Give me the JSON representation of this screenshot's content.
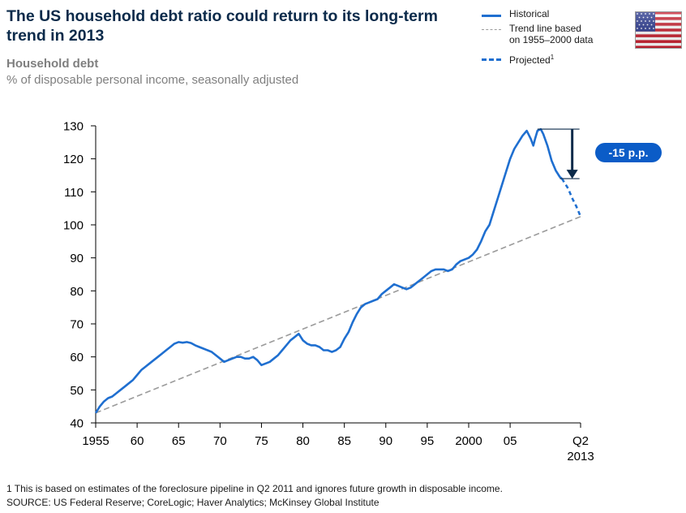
{
  "header": {
    "title": "The US household debt ratio could return to its long-term trend in 2013",
    "subtitle": "Household debt",
    "unit_note": "% of disposable personal income, seasonally adjusted"
  },
  "legend": {
    "historical": "Historical",
    "trend_line1": "Trend line based",
    "trend_line2": "on 1955–2000 data",
    "projected": "Projected",
    "projected_sup": "1"
  },
  "flag_icon": "us-flag-icon",
  "colors": {
    "historical": "#1f6fd0",
    "trend": "#9b9b9b",
    "annotation_arrow": "#0b2a4a",
    "badge_fill": "#0b5cc7",
    "title": "#0b2a4a"
  },
  "chart_data": {
    "type": "line",
    "ylim": [
      40,
      130
    ],
    "y_ticks": [
      40,
      50,
      60,
      70,
      80,
      90,
      100,
      110,
      120,
      130
    ],
    "xlim": [
      1955,
      2013.5
    ],
    "x_ticks": [
      {
        "value": 1955,
        "label": "1955"
      },
      {
        "value": 1960,
        "label": "60"
      },
      {
        "value": 1965,
        "label": "65"
      },
      {
        "value": 1970,
        "label": "70"
      },
      {
        "value": 1975,
        "label": "75"
      },
      {
        "value": 1980,
        "label": "80"
      },
      {
        "value": 1985,
        "label": "85"
      },
      {
        "value": 1990,
        "label": "90"
      },
      {
        "value": 1995,
        "label": "95"
      },
      {
        "value": 2000,
        "label": "2000"
      },
      {
        "value": 2005,
        "label": "05"
      },
      {
        "value": 2013.5,
        "label": "Q2",
        "label2": "2013"
      }
    ],
    "series": [
      {
        "name": "Historical",
        "style": "solid",
        "points": [
          [
            1955,
            43
          ],
          [
            1955.5,
            45
          ],
          [
            1956,
            46.5
          ],
          [
            1956.5,
            47.5
          ],
          [
            1957,
            48
          ],
          [
            1957.5,
            49
          ],
          [
            1958,
            50
          ],
          [
            1958.5,
            51
          ],
          [
            1959,
            52
          ],
          [
            1959.5,
            53
          ],
          [
            1960,
            54.5
          ],
          [
            1960.5,
            56
          ],
          [
            1961,
            57
          ],
          [
            1961.5,
            58
          ],
          [
            1962,
            59
          ],
          [
            1962.5,
            60
          ],
          [
            1963,
            61
          ],
          [
            1963.5,
            62
          ],
          [
            1964,
            63
          ],
          [
            1964.5,
            64
          ],
          [
            1965,
            64.5
          ],
          [
            1965.5,
            64.3
          ],
          [
            1966,
            64.5
          ],
          [
            1966.5,
            64.2
          ],
          [
            1967,
            63.5
          ],
          [
            1967.5,
            63
          ],
          [
            1968,
            62.5
          ],
          [
            1968.5,
            62
          ],
          [
            1969,
            61.5
          ],
          [
            1969.5,
            60.5
          ],
          [
            1970,
            59.5
          ],
          [
            1970.5,
            58.5
          ],
          [
            1971,
            59
          ],
          [
            1971.5,
            59.5
          ],
          [
            1972,
            60
          ],
          [
            1972.5,
            60
          ],
          [
            1973,
            59.5
          ],
          [
            1973.5,
            59.5
          ],
          [
            1974,
            60
          ],
          [
            1974.5,
            59
          ],
          [
            1975,
            57.5
          ],
          [
            1975.5,
            58
          ],
          [
            1976,
            58.5
          ],
          [
            1976.5,
            59.5
          ],
          [
            1977,
            60.5
          ],
          [
            1977.5,
            62
          ],
          [
            1978,
            63.5
          ],
          [
            1978.5,
            65
          ],
          [
            1979,
            66
          ],
          [
            1979.5,
            67
          ],
          [
            1980,
            65
          ],
          [
            1980.5,
            64
          ],
          [
            1981,
            63.5
          ],
          [
            1981.5,
            63.5
          ],
          [
            1982,
            63
          ],
          [
            1982.5,
            62
          ],
          [
            1983,
            62
          ],
          [
            1983.5,
            61.5
          ],
          [
            1984,
            62
          ],
          [
            1984.5,
            63
          ],
          [
            1985,
            65.5
          ],
          [
            1985.5,
            67.5
          ],
          [
            1986,
            70.5
          ],
          [
            1986.5,
            73
          ],
          [
            1987,
            75
          ],
          [
            1987.5,
            76
          ],
          [
            1988,
            76.5
          ],
          [
            1988.5,
            77
          ],
          [
            1989,
            77.5
          ],
          [
            1989.5,
            79
          ],
          [
            1990,
            80
          ],
          [
            1990.5,
            81
          ],
          [
            1991,
            82
          ],
          [
            1991.5,
            81.5
          ],
          [
            1992,
            81
          ],
          [
            1992.5,
            80.5
          ],
          [
            1993,
            81
          ],
          [
            1993.5,
            82
          ],
          [
            1994,
            83
          ],
          [
            1994.5,
            84
          ],
          [
            1995,
            85
          ],
          [
            1995.5,
            86
          ],
          [
            1996,
            86.5
          ],
          [
            1996.5,
            86.5
          ],
          [
            1997,
            86.5
          ],
          [
            1997.5,
            86
          ],
          [
            1998,
            86.5
          ],
          [
            1998.5,
            88
          ],
          [
            1999,
            89
          ],
          [
            1999.5,
            89.5
          ],
          [
            2000,
            90
          ],
          [
            2000.5,
            91
          ],
          [
            2001,
            92.5
          ],
          [
            2001.5,
            95
          ],
          [
            2002,
            98
          ],
          [
            2002.5,
            100
          ],
          [
            2003,
            104
          ],
          [
            2003.5,
            108
          ],
          [
            2004,
            112
          ],
          [
            2004.5,
            116
          ],
          [
            2005,
            120
          ],
          [
            2005.5,
            123
          ],
          [
            2006,
            125
          ],
          [
            2006.5,
            127
          ],
          [
            2007,
            128.5
          ],
          [
            2007.5,
            126
          ],
          [
            2007.8,
            124
          ],
          [
            2008,
            126
          ],
          [
            2008.3,
            128.5
          ],
          [
            2008.7,
            129
          ],
          [
            2009,
            127.5
          ],
          [
            2009.5,
            124
          ],
          [
            2010,
            119.5
          ],
          [
            2010.5,
            116.5
          ],
          [
            2011,
            114.5
          ],
          [
            2011.25,
            114
          ]
        ]
      },
      {
        "name": "Trend line based on 1955–2000 data",
        "style": "dashed",
        "points": [
          [
            1955,
            43
          ],
          [
            2013.5,
            102.5
          ]
        ]
      },
      {
        "name": "Projected",
        "style": "dashed",
        "points": [
          [
            2011.25,
            114
          ],
          [
            2012,
            111
          ],
          [
            2012.5,
            108
          ],
          [
            2013,
            105.5
          ],
          [
            2013.5,
            102.5
          ]
        ]
      }
    ],
    "annotation": {
      "label": "-15 p.p.",
      "from_value": 129,
      "to_value": 114,
      "x_value": 2012
    }
  },
  "footnote": "1  This is based on estimates of the foreclosure pipeline in Q2 2011 and ignores future growth in disposable income.",
  "source": "SOURCE: US Federal Reserve; CoreLogic; Haver Analytics; McKinsey Global Institute"
}
